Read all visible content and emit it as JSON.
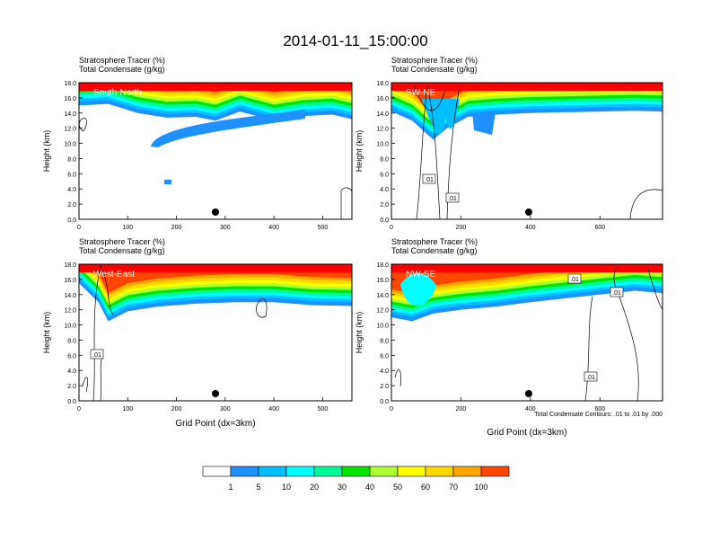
{
  "figure_title": "2014-01-11_15:00:00",
  "footnote": "Total Condensate Contours: .01 to .01 by .000",
  "colorbar": {
    "labels": [
      "1",
      "5",
      "10",
      "20",
      "30",
      "40",
      "50",
      "60",
      "70",
      "100"
    ],
    "colors": [
      "#ffffff",
      "#1e90ff",
      "#00bfff",
      "#00ffff",
      "#00fa9a",
      "#00e400",
      "#adff2f",
      "#ffff00",
      "#ffd700",
      "#ffa500",
      "#ff4500",
      "#ff0000"
    ]
  },
  "chart_data": [
    {
      "type": "heatmap",
      "panel": "South-North",
      "title_lines": [
        "Stratosphere Tracer   (%)",
        "Total Condensate   (g/kg)"
      ],
      "ylabel": "Height (km)",
      "xlabel": "",
      "xlim": [
        0,
        560
      ],
      "ylim": [
        0,
        18
      ],
      "xticks": [
        "0",
        "100",
        "200",
        "300",
        "400",
        "500"
      ],
      "yticks": [
        "0.0",
        "2.0",
        "4.0",
        "6.0",
        "8.0",
        "10.0",
        "12.0",
        "14.0",
        "16.0",
        "18.0"
      ],
      "marker_x": 280,
      "tracer_front": [
        [
          0,
          15.0
        ],
        [
          60,
          15.2
        ],
        [
          120,
          14.0
        ],
        [
          180,
          13.4
        ],
        [
          240,
          13.5
        ],
        [
          280,
          13.0
        ],
        [
          330,
          14.2
        ],
        [
          400,
          13.0
        ],
        [
          460,
          13.6
        ],
        [
          520,
          13.8
        ],
        [
          560,
          13.2
        ]
      ],
      "contour_labels": []
    },
    {
      "type": "heatmap",
      "panel": "SW-NE",
      "title_lines": [
        "Stratosphere Tracer   (%)",
        "Total Condensate   (g/kg)"
      ],
      "ylabel": "Height (km)",
      "xlabel": "",
      "xlim": [
        0,
        780
      ],
      "ylim": [
        0,
        18
      ],
      "xticks": [
        "0",
        "200",
        "400",
        "600"
      ],
      "yticks": [
        "0.0",
        "2.0",
        "4.0",
        "6.0",
        "8.0",
        "10.0",
        "12.0",
        "14.0",
        "16.0",
        "18.0"
      ],
      "marker_x": 395,
      "tracer_front": [
        [
          0,
          14.2
        ],
        [
          60,
          13.0
        ],
        [
          120,
          10.5
        ],
        [
          160,
          12.0
        ],
        [
          220,
          13.5
        ],
        [
          300,
          13.8
        ],
        [
          400,
          14.0
        ],
        [
          500,
          14.1
        ],
        [
          600,
          14.2
        ],
        [
          700,
          14.3
        ],
        [
          780,
          14.2
        ]
      ],
      "contour_labels": [
        ".01",
        ".01"
      ]
    },
    {
      "type": "heatmap",
      "panel": "West-East",
      "title_lines": [
        "Stratosphere Tracer   (%)",
        "Total Condensate   (g/kg)"
      ],
      "ylabel": "Height (km)",
      "xlabel": "Grid Point (dx=3km)",
      "xlim": [
        0,
        560
      ],
      "ylim": [
        0,
        18
      ],
      "xticks": [
        "0",
        "100",
        "200",
        "300",
        "400",
        "500"
      ],
      "yticks": [
        "0.0",
        "2.0",
        "4.0",
        "6.0",
        "8.0",
        "10.0",
        "12.0",
        "14.0",
        "16.0",
        "18.0"
      ],
      "marker_x": 280,
      "tracer_front": [
        [
          0,
          15.5
        ],
        [
          40,
          13.0
        ],
        [
          60,
          10.5
        ],
        [
          100,
          11.8
        ],
        [
          160,
          12.4
        ],
        [
          240,
          12.8
        ],
        [
          320,
          13.0
        ],
        [
          400,
          13.0
        ],
        [
          480,
          12.6
        ],
        [
          560,
          12.5
        ]
      ],
      "contour_labels": [
        ".01"
      ]
    },
    {
      "type": "heatmap",
      "panel": "NW-SE",
      "title_lines": [
        "Stratosphere Tracer   (%)",
        "Total Condensate   (g/kg)"
      ],
      "ylabel": "Height (km)",
      "xlabel": "Grid Point (dx=3km)",
      "xlim": [
        0,
        780
      ],
      "ylim": [
        0,
        18
      ],
      "xticks": [
        "0",
        "200",
        "400",
        "600"
      ],
      "yticks": [
        "0.0",
        "2.0",
        "4.0",
        "6.0",
        "8.0",
        "10.0",
        "12.0",
        "14.0",
        "16.0",
        "18.0"
      ],
      "marker_x": 395,
      "tracer_front": [
        [
          0,
          11.0
        ],
        [
          60,
          10.5
        ],
        [
          120,
          11.5
        ],
        [
          200,
          12.0
        ],
        [
          300,
          12.4
        ],
        [
          400,
          13.0
        ],
        [
          500,
          13.5
        ],
        [
          600,
          14.0
        ],
        [
          700,
          14.5
        ],
        [
          780,
          14.2
        ]
      ],
      "contour_labels": [
        ".01",
        ".01",
        ".01"
      ]
    }
  ]
}
